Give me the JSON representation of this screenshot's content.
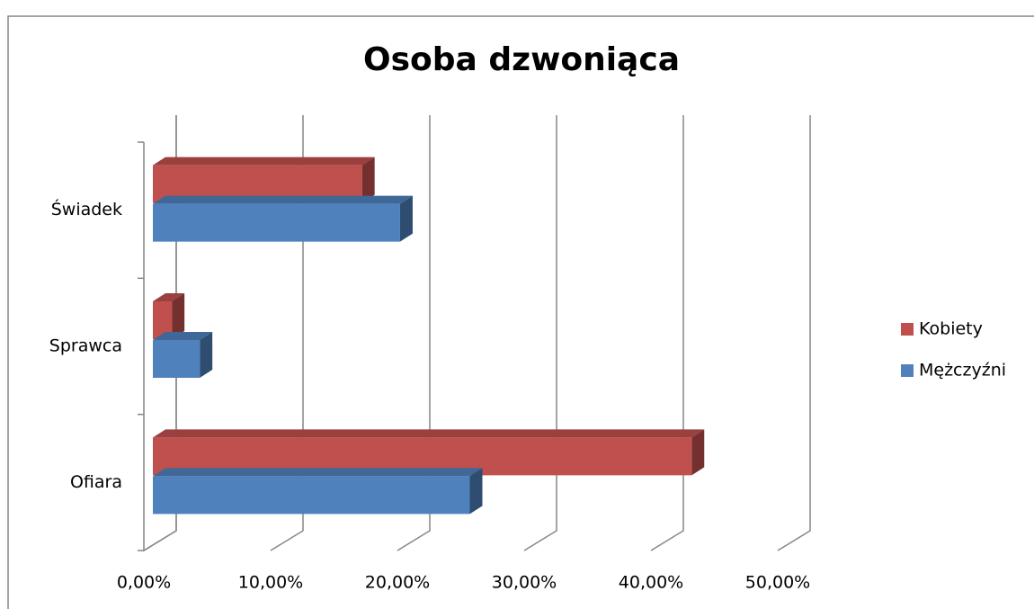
{
  "chart_data": {
    "type": "bar3d",
    "orientation": "horizontal",
    "title": "Osoba dzwoniąca",
    "categories": [
      "Ofiara",
      "Sprawca",
      "Świadek"
    ],
    "series": [
      {
        "name": "Kobiety",
        "color": "#c0504d",
        "values": [
          42.5,
          1.5,
          16.5
        ]
      },
      {
        "name": "Mężczyźni",
        "color": "#4f81bd",
        "values": [
          25,
          3.7,
          19.5
        ]
      }
    ],
    "xlim": [
      0,
      50
    ],
    "xticks": [
      {
        "value": 0,
        "label": "0,00%"
      },
      {
        "value": 10,
        "label": "10,00%"
      },
      {
        "value": 20,
        "label": "20,00%"
      },
      {
        "value": 30,
        "label": "30,00%"
      },
      {
        "value": 40,
        "label": "40,00%"
      },
      {
        "value": 50,
        "label": "50,00%"
      }
    ],
    "grid": true,
    "legend": "right"
  }
}
